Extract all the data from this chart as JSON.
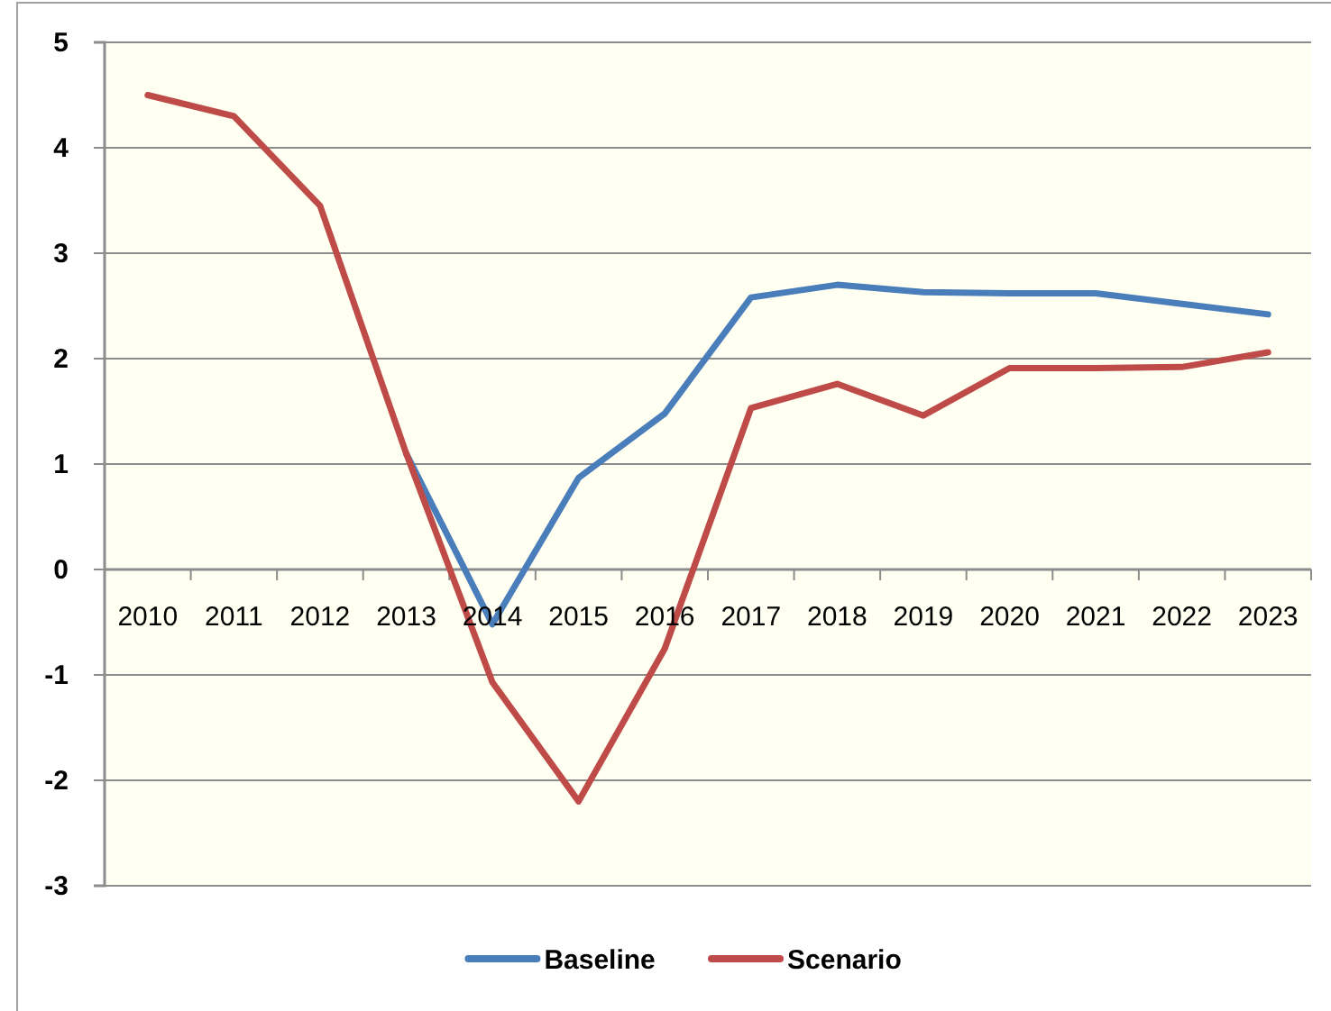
{
  "chart_data": {
    "type": "line",
    "categories": [
      "2010",
      "2011",
      "2012",
      "2013",
      "2014",
      "2015",
      "2016",
      "2017",
      "2018",
      "2019",
      "2020",
      "2021",
      "2022",
      "2023"
    ],
    "series": [
      {
        "name": "Baseline",
        "color": "#4a7ebb",
        "values": [
          null,
          null,
          null,
          1.1,
          -0.52,
          0.87,
          1.48,
          2.58,
          2.7,
          2.63,
          2.62,
          2.62,
          2.52,
          2.42
        ]
      },
      {
        "name": "Scenario",
        "color": "#be4b48",
        "values": [
          4.5,
          4.3,
          3.45,
          1.1,
          -1.07,
          -2.2,
          -0.75,
          1.53,
          1.76,
          1.46,
          1.91,
          1.91,
          1.92,
          2.06
        ]
      }
    ],
    "ylim": [
      -3,
      5
    ],
    "yticks": [
      -3,
      -2,
      -1,
      0,
      1,
      2,
      3,
      4,
      5
    ],
    "grid": "y",
    "legend": "bottom"
  }
}
